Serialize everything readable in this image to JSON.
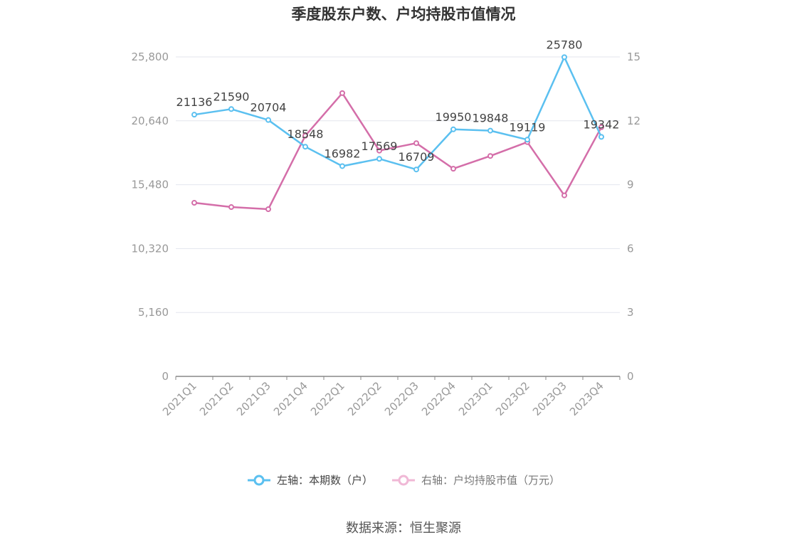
{
  "chart_data": {
    "type": "line",
    "title": "季度股东户数、户均持股市值情况",
    "categories": [
      "2021Q1",
      "2021Q2",
      "2021Q3",
      "2021Q4",
      "2022Q1",
      "2022Q2",
      "2022Q3",
      "2022Q4",
      "2023Q1",
      "2023Q2",
      "2023Q3",
      "2023Q4"
    ],
    "left_axis": {
      "ylim": [
        0,
        25800
      ],
      "ticks": [
        "0",
        "5,160",
        "10,320",
        "15,480",
        "20,640",
        "25,800"
      ]
    },
    "right_axis": {
      "ylim": [
        0,
        15
      ],
      "ticks": [
        "0",
        "3",
        "6",
        "9",
        "12",
        "15"
      ]
    },
    "series": [
      {
        "name": "左轴：本期数（户）",
        "axis": "left",
        "color": "#5bc0f0",
        "values": [
          21136,
          21590,
          20704,
          18548,
          16982,
          17569,
          16709,
          19950,
          19848,
          19119,
          25780,
          19342
        ],
        "labels": [
          "21136",
          "21590",
          "20704",
          "18548",
          "16982",
          "17569",
          "16709",
          "19950",
          "19848",
          "19119",
          "25780",
          "19342"
        ]
      },
      {
        "name": "右轴：户均持股市值（万元）",
        "axis": "right",
        "color": "#d46ea9",
        "values": [
          8.15,
          7.95,
          7.85,
          11.3,
          13.3,
          10.6,
          10.95,
          9.75,
          10.35,
          11.0,
          8.5,
          11.7
        ]
      }
    ],
    "legend_position": "bottom-center",
    "grid": true
  },
  "source": "数据来源：恒生聚源"
}
